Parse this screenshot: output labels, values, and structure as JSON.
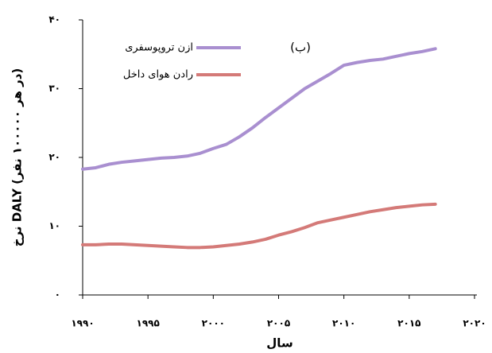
{
  "chart_data": {
    "type": "line",
    "x_label": "سال",
    "y_label": "نرخ DALY (در هر ۱۰۰۰۰۰ نفر)",
    "annotation": "(ب)",
    "x": [
      1990,
      1991,
      1992,
      1993,
      1994,
      1995,
      1996,
      1997,
      1998,
      1999,
      2000,
      2001,
      2002,
      2003,
      2004,
      2005,
      2006,
      2007,
      2008,
      2009,
      2010,
      2011,
      2012,
      2013,
      2014,
      2015,
      2016,
      2017
    ],
    "series": [
      {
        "name": "ازن تروپوسفری",
        "color": "#a98fd0",
        "values": [
          18.3,
          18.5,
          19.0,
          19.3,
          19.5,
          19.7,
          19.9,
          20.0,
          20.2,
          20.6,
          21.3,
          21.9,
          23.0,
          24.3,
          25.8,
          27.2,
          28.6,
          30.0,
          31.1,
          32.2,
          33.4,
          33.8,
          34.1,
          34.3,
          34.7,
          35.1,
          35.4,
          35.8
        ]
      },
      {
        "name": "رادن هوای داخل",
        "color": "#d47a78",
        "values": [
          7.3,
          7.3,
          7.4,
          7.4,
          7.3,
          7.2,
          7.1,
          7.0,
          6.9,
          6.9,
          7.0,
          7.2,
          7.4,
          7.7,
          8.1,
          8.7,
          9.2,
          9.8,
          10.5,
          10.9,
          11.3,
          11.7,
          12.1,
          12.4,
          12.7,
          12.9,
          13.1,
          13.2
        ]
      }
    ],
    "xlim": [
      1990,
      2020
    ],
    "xticks": [
      {
        "value": 1990,
        "label": "۱۹۹۰"
      },
      {
        "value": 1995,
        "label": "۱۹۹۵"
      },
      {
        "value": 2000,
        "label": "۲۰۰۰"
      },
      {
        "value": 2005,
        "label": "۲۰۰۵"
      },
      {
        "value": 2010,
        "label": "۲۰۱۰"
      },
      {
        "value": 2015,
        "label": "۲۰۱۵"
      },
      {
        "value": 2020,
        "label": "۲۰۲۰"
      }
    ],
    "ylim": [
      0,
      40
    ],
    "yticks": [
      {
        "value": 0,
        "label": "۰"
      },
      {
        "value": 10,
        "label": "۱۰"
      },
      {
        "value": 20,
        "label": "۲۰"
      },
      {
        "value": 30,
        "label": "۳۰"
      },
      {
        "value": 40,
        "label": "۴۰"
      }
    ],
    "grid": false,
    "legend": "upper-left"
  }
}
